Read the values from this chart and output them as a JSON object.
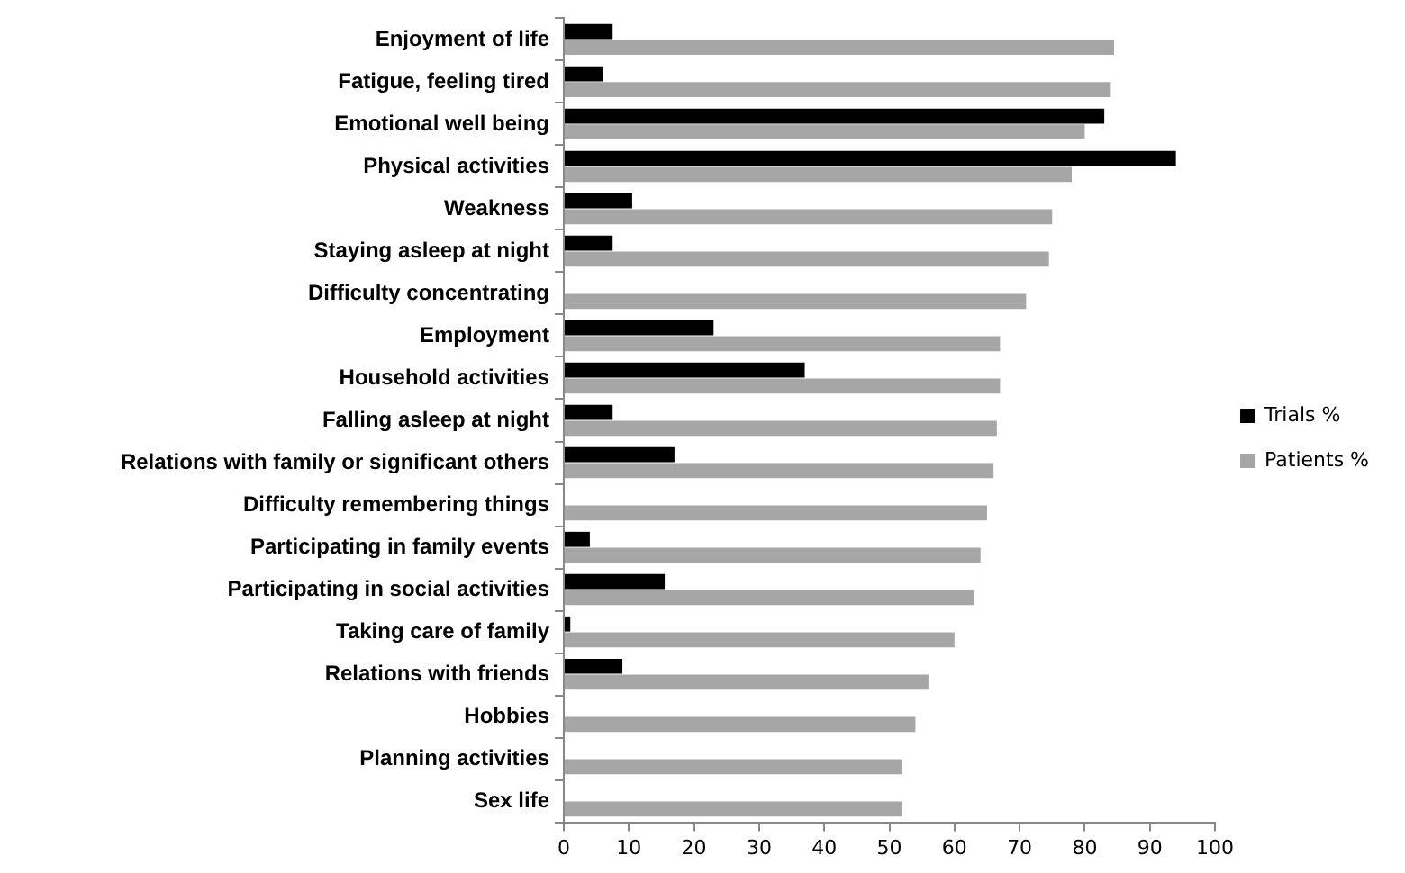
{
  "chart_data": {
    "type": "bar",
    "orientation": "horizontal",
    "categories": [
      "Enjoyment of life",
      "Fatigue, feeling tired",
      "Emotional well being",
      "Physical activities",
      "Weakness",
      "Staying asleep at night",
      "Difficulty concentrating",
      "Employment",
      "Household activities",
      "Falling asleep at night",
      "Relations with family or significant others",
      "Difficulty remembering things",
      "Participating in family events",
      "Participating in social activities",
      "Taking care of family",
      "Relations with friends",
      "Hobbies",
      "Planning activities",
      "Sex life"
    ],
    "series": [
      {
        "name": "Trials %",
        "color": "#000000",
        "values": [
          7.5,
          6,
          83,
          94,
          10.5,
          7.5,
          null,
          23,
          37,
          7.5,
          17,
          null,
          4,
          15.5,
          1,
          9,
          null,
          null,
          null
        ]
      },
      {
        "name": "Patients %",
        "color": "#a6a6a6",
        "values": [
          84.5,
          84,
          80,
          78,
          75,
          74.5,
          71,
          67,
          67,
          66.5,
          66,
          65,
          64,
          63,
          60,
          56,
          54,
          52,
          52
        ]
      }
    ],
    "xlim": [
      0,
      100
    ],
    "xticks": [
      0,
      10,
      20,
      30,
      40,
      50,
      60,
      70,
      80,
      90,
      100
    ],
    "grid": false,
    "legend": "right"
  }
}
